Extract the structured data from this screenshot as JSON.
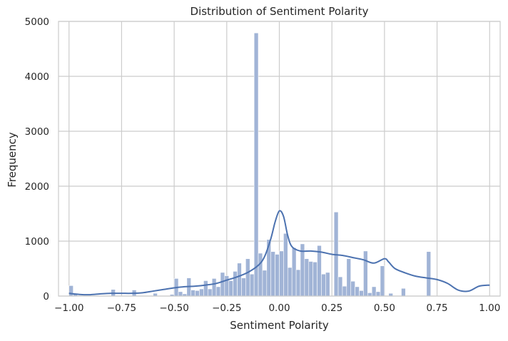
{
  "chart_data": {
    "type": "histogram",
    "title": "Distribution of Sentiment Polarity",
    "xlabel": "Sentiment Polarity",
    "ylabel": "Frequency",
    "xlim": [
      -1.05,
      1.05
    ],
    "ylim": [
      0,
      5000
    ],
    "xticks": [
      -1.0,
      -0.75,
      -0.5,
      -0.25,
      0.0,
      0.25,
      0.5,
      0.75,
      1.0
    ],
    "xtick_labels": [
      "−1.00",
      "−0.75",
      "−0.50",
      "−0.25",
      "0.00",
      "0.25",
      "0.50",
      "0.75",
      "1.00"
    ],
    "yticks": [
      0,
      1000,
      2000,
      3000,
      4000,
      5000
    ],
    "ytick_labels": [
      "0",
      "1000",
      "2000",
      "3000",
      "4000",
      "5000"
    ],
    "grid": true,
    "bin_width": 0.02,
    "bins_start": [
      -1.0,
      -0.98,
      -0.96,
      -0.94,
      -0.92,
      -0.9,
      -0.88,
      -0.86,
      -0.84,
      -0.82,
      -0.8,
      -0.78,
      -0.76,
      -0.74,
      -0.72,
      -0.7,
      -0.68,
      -0.66,
      -0.64,
      -0.62,
      -0.6,
      -0.58,
      -0.56,
      -0.54,
      -0.52,
      -0.5,
      -0.48,
      -0.46,
      -0.44,
      -0.42,
      -0.4,
      -0.38,
      -0.36,
      -0.34,
      -0.32,
      -0.3,
      -0.28,
      -0.26,
      -0.24,
      -0.22,
      -0.2,
      -0.18,
      -0.16,
      -0.14,
      -0.12,
      -0.1,
      -0.08,
      -0.06,
      -0.04,
      -0.02,
      0.0,
      0.02,
      0.04,
      0.06,
      0.08,
      0.1,
      0.12,
      0.14,
      0.16,
      0.18,
      0.2,
      0.22,
      0.24,
      0.26,
      0.28,
      0.3,
      0.32,
      0.34,
      0.36,
      0.38,
      0.4,
      0.42,
      0.44,
      0.46,
      0.48,
      0.5,
      0.52,
      0.54,
      0.56,
      0.58,
      0.6,
      0.62,
      0.64,
      0.66,
      0.68,
      0.7,
      0.72,
      0.74,
      0.76,
      0.78,
      0.8,
      0.82,
      0.84,
      0.86,
      0.88,
      0.9,
      0.92,
      0.94,
      0.96,
      0.98
    ],
    "counts": [
      190,
      30,
      0,
      0,
      0,
      0,
      0,
      0,
      0,
      0,
      120,
      0,
      0,
      0,
      0,
      110,
      0,
      0,
      0,
      0,
      50,
      0,
      0,
      0,
      30,
      320,
      80,
      40,
      330,
      110,
      100,
      130,
      280,
      130,
      320,
      170,
      430,
      370,
      280,
      450,
      600,
      330,
      680,
      400,
      4790,
      780,
      470,
      1030,
      810,
      760,
      820,
      1140,
      520,
      880,
      480,
      950,
      680,
      630,
      620,
      920,
      400,
      430,
      0,
      1530,
      350,
      180,
      680,
      270,
      170,
      100,
      820,
      60,
      170,
      80,
      550,
      0,
      50,
      0,
      0,
      140,
      0,
      0,
      0,
      0,
      0,
      810,
      0,
      0,
      0,
      0,
      0,
      0,
      0,
      0,
      0,
      0,
      0,
      0,
      0,
      0
    ],
    "kde": {
      "x": [
        -1.0,
        -0.95,
        -0.9,
        -0.85,
        -0.8,
        -0.75,
        -0.7,
        -0.65,
        -0.6,
        -0.55,
        -0.5,
        -0.45,
        -0.4,
        -0.35,
        -0.3,
        -0.25,
        -0.2,
        -0.15,
        -0.1,
        -0.07,
        -0.04,
        -0.02,
        0.0,
        0.02,
        0.04,
        0.06,
        0.1,
        0.15,
        0.2,
        0.25,
        0.3,
        0.35,
        0.4,
        0.45,
        0.5,
        0.52,
        0.55,
        0.6,
        0.65,
        0.7,
        0.75,
        0.8,
        0.85,
        0.9,
        0.95,
        1.0
      ],
      "y": [
        50,
        30,
        25,
        40,
        50,
        50,
        50,
        60,
        90,
        120,
        150,
        170,
        180,
        200,
        230,
        290,
        350,
        430,
        560,
        720,
        1050,
        1350,
        1550,
        1450,
        1100,
        900,
        820,
        820,
        800,
        760,
        740,
        700,
        660,
        600,
        680,
        620,
        500,
        420,
        360,
        330,
        300,
        230,
        110,
        90,
        180,
        200
      ]
    },
    "colors": {
      "bar_fill": "#a1b4d6",
      "bar_edge": "#ffffff",
      "kde_line": "#4c72b0",
      "grid": "#cccccc",
      "spine": "#cccccc"
    }
  }
}
